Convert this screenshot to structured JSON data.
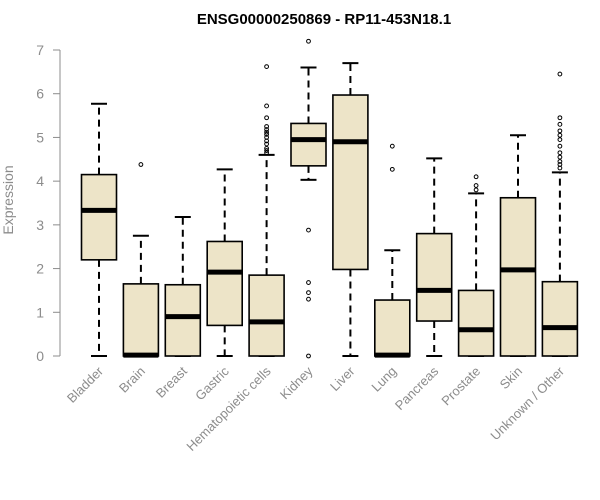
{
  "chart_data": {
    "type": "boxplot",
    "title": "ENSG00000250869 - RP11-453N18.1",
    "ylabel": "Expression",
    "ylim": [
      0,
      7
    ],
    "yticks": [
      0,
      1,
      2,
      3,
      4,
      5,
      6,
      7
    ],
    "box_color": "#ede4c8",
    "categories": [
      "Bladder",
      "Brain",
      "Breast",
      "Gastric",
      "Hematopoietic cells",
      "Kidney",
      "Liver",
      "Lung",
      "Pancreas",
      "Prostate",
      "Skin",
      "Unknown / Other"
    ],
    "boxes": [
      {
        "whisker_low": 0.0,
        "q1": 2.2,
        "median": 3.33,
        "q3": 4.15,
        "whisker_high": 5.77,
        "outliers": []
      },
      {
        "whisker_low": 0.0,
        "q1": 0.0,
        "median": 0.02,
        "q3": 1.65,
        "whisker_high": 2.75,
        "outliers": [
          4.38
        ]
      },
      {
        "whisker_low": 0.0,
        "q1": 0.0,
        "median": 0.9,
        "q3": 1.63,
        "whisker_high": 3.18,
        "outliers": []
      },
      {
        "whisker_low": 0.0,
        "q1": 0.7,
        "median": 1.92,
        "q3": 2.62,
        "whisker_high": 4.27,
        "outliers": []
      },
      {
        "whisker_low": 0.0,
        "q1": 0.0,
        "median": 0.78,
        "q3": 1.85,
        "whisker_high": 4.6,
        "outliers": [
          4.65,
          4.7,
          4.75,
          4.85,
          4.92,
          5.0,
          5.07,
          5.12,
          5.18,
          5.25,
          5.45,
          5.72,
          6.62
        ]
      },
      {
        "whisker_low": 4.03,
        "q1": 4.35,
        "median": 4.95,
        "q3": 5.32,
        "whisker_high": 6.6,
        "outliers": [
          0.0,
          1.3,
          1.45,
          1.68,
          2.88,
          7.2
        ]
      },
      {
        "whisker_low": 0.0,
        "q1": 1.98,
        "median": 4.9,
        "q3": 5.97,
        "whisker_high": 6.7,
        "outliers": []
      },
      {
        "whisker_low": 0.0,
        "q1": 0.0,
        "median": 0.02,
        "q3": 1.28,
        "whisker_high": 2.42,
        "outliers": [
          4.27,
          4.8
        ]
      },
      {
        "whisker_low": 0.0,
        "q1": 0.8,
        "median": 1.5,
        "q3": 2.8,
        "whisker_high": 4.52,
        "outliers": []
      },
      {
        "whisker_low": 0.0,
        "q1": 0.0,
        "median": 0.6,
        "q3": 1.5,
        "whisker_high": 3.72,
        "outliers": [
          3.8,
          3.9,
          4.1
        ]
      },
      {
        "whisker_low": 0.0,
        "q1": 0.0,
        "median": 1.97,
        "q3": 3.62,
        "whisker_high": 5.05,
        "outliers": []
      },
      {
        "whisker_low": 0.0,
        "q1": 0.0,
        "median": 0.65,
        "q3": 1.7,
        "whisker_high": 4.2,
        "outliers": [
          4.3,
          4.38,
          4.45,
          4.55,
          4.65,
          4.8,
          4.95,
          5.05,
          5.15,
          5.3,
          5.45,
          6.45
        ]
      }
    ]
  }
}
